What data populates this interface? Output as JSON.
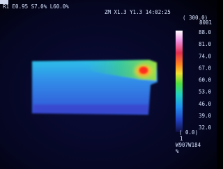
{
  "header": {
    "line1": "R1 E0.95 S7.0% L60.0%",
    "line2": "ZM X1.3 Y1.3 14:02:25",
    "range_top": "( 300.0)",
    "code": "8001"
  },
  "scale": {
    "labels": [
      "88.0",
      "81.0",
      "74.0",
      "67.0",
      "60.0",
      "53.0",
      "46.0",
      "39.0",
      "32.0"
    ]
  },
  "footer": {
    "range_bottom": "( 0.0)",
    "index": "1",
    "code": "W907W184",
    "unit": "%"
  }
}
